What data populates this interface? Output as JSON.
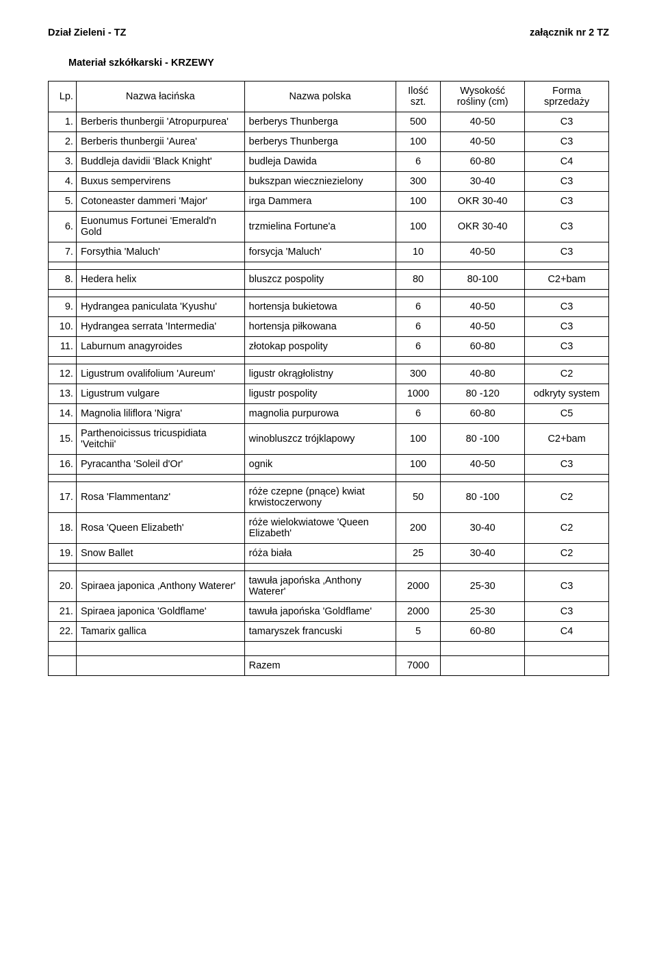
{
  "header": {
    "left": "Dział Zieleni - TZ",
    "right": "załącznik nr 2 TZ"
  },
  "subtitle": "Materiał szkółkarski - KRZEWY",
  "columns": {
    "lp": "Lp.",
    "latin": "Nazwa łacińska",
    "polish": "Nazwa polska",
    "qty": "Ilość szt.",
    "height": "Wysokość rośliny (cm)",
    "form": "Forma sprzedaży"
  },
  "rows": [
    {
      "lp": "1.",
      "latin": "Berberis thunbergii 'Atropurpurea'",
      "polish": "berberys Thunberga",
      "qty": "500",
      "height": "40-50",
      "form": "C3"
    },
    {
      "lp": "2.",
      "latin": "Berberis thunbergii  'Aurea'",
      "polish": "berberys Thunberga",
      "qty": "100",
      "height": "40-50",
      "form": "C3"
    },
    {
      "lp": "3.",
      "latin": "Buddleja davidii 'Black Knight'",
      "polish": "budleja Dawida",
      "qty": "6",
      "height": "60-80",
      "form": "C4"
    },
    {
      "lp": "4.",
      "latin": "Buxus sempervirens",
      "polish": "bukszpan wieczniezielony",
      "qty": "300",
      "height": "30-40",
      "form": "C3"
    },
    {
      "lp": "5.",
      "latin": "Cotoneaster dammeri 'Major'",
      "polish": "irga Dammera",
      "qty": "100",
      "height": "OKR 30-40",
      "form": "C3"
    },
    {
      "lp": "6.",
      "latin": "Euonumus Fortunei 'Emerald'n Gold",
      "polish": "trzmielina Fortune'a",
      "qty": "100",
      "height": "OKR 30-40",
      "form": "C3"
    },
    {
      "lp": "7.",
      "latin": "Forsythia 'Maluch'",
      "polish": "forsycja 'Maluch'",
      "qty": "10",
      "height": "40-50",
      "form": "C3"
    },
    {
      "lp": "8.",
      "latin": "Hedera helix",
      "polish": "bluszcz pospolity",
      "qty": "80",
      "height": "80-100",
      "form": "C2+bam"
    },
    {
      "lp": "9.",
      "latin": "Hydrangea paniculata 'Kyushu'",
      "polish": "hortensja bukietowa",
      "qty": "6",
      "height": "40-50",
      "form": "C3"
    },
    {
      "lp": "10.",
      "latin": "Hydrangea serrata 'Intermedia'",
      "polish": "hortensja piłkowana",
      "qty": "6",
      "height": "40-50",
      "form": "C3"
    },
    {
      "lp": "11.",
      "latin": "Laburnum anagyroides",
      "polish": "złotokap pospolity",
      "qty": "6",
      "height": "60-80",
      "form": "C3"
    },
    {
      "lp": "12.",
      "latin": "Ligustrum ovalifolium 'Aureum'",
      "polish": "ligustr okrągłolistny",
      "qty": "300",
      "height": "40-80",
      "form": "C2"
    },
    {
      "lp": "13.",
      "latin": "Ligustrum vulgare",
      "polish": "ligustr pospolity",
      "qty": "1000",
      "height": "80 -120",
      "form": "odkryty system"
    },
    {
      "lp": "14.",
      "latin": "Magnolia liliflora 'Nigra'",
      "polish": "magnolia purpurowa",
      "qty": "6",
      "height": "60-80",
      "form": "C5"
    },
    {
      "lp": "15.",
      "latin": "Parthenoicissus tricuspidiata 'Veitchii'",
      "polish": "winobluszcz trójklapowy",
      "qty": "100",
      "height": "80 -100",
      "form": "C2+bam"
    },
    {
      "lp": "16.",
      "latin": "Pyracantha 'Soleil d'Or'",
      "polish": "ognik",
      "qty": "100",
      "height": "40-50",
      "form": "C3"
    },
    {
      "lp": "17.",
      "latin": "Rosa 'Flammentanz'",
      "polish": "róże czepne (pnące) kwiat krwistoczerwony",
      "qty": "50",
      "height": "80 -100",
      "form": "C2"
    },
    {
      "lp": "18.",
      "latin": "Rosa 'Queen Elizabeth'",
      "polish": "róże wielokwiatowe 'Queen Elizabeth'",
      "qty": "200",
      "height": "30-40",
      "form": "C2"
    },
    {
      "lp": "19.",
      "latin": "Snow Ballet",
      "polish": "róża biała",
      "qty": "25",
      "height": "30-40",
      "form": "C2"
    },
    {
      "lp": "20.",
      "latin": "Spiraea japonica ‚Anthony Waterer'",
      "polish": "tawuła  japońska ‚Anthony Waterer'",
      "qty": "2000",
      "height": "25-30",
      "form": "C3"
    },
    {
      "lp": "21.",
      "latin": "Spiraea japonica 'Goldflame'",
      "polish": "tawuła japońska 'Goldflame'",
      "qty": "2000",
      "height": "25-30",
      "form": "C3"
    },
    {
      "lp": "22.",
      "latin": "Tamarix gallica",
      "polish": "tamaryszek francuski",
      "qty": "5",
      "height": "60-80",
      "form": "C4"
    }
  ],
  "footer": {
    "label": "Razem",
    "total": "7000"
  },
  "spacer_after": [
    7,
    8,
    11,
    16,
    19,
    22
  ],
  "style": {
    "background_color": "#ffffff",
    "text_color": "#000000",
    "border_color": "#000000",
    "font_family": "Arial",
    "body_fontsize_pt": 11,
    "header_fontweight": "bold"
  }
}
